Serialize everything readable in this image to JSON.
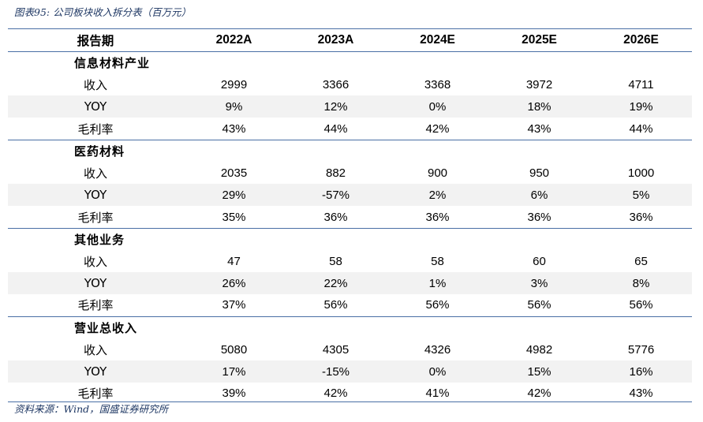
{
  "caption": "图表95:  公司板块收入拆分表（百万元）",
  "source": "资料来源：Wind，国盛证券研究所",
  "colors": {
    "rule": "#4a6fa5",
    "caption_text": "#1f3864",
    "row_shade": "#f2f2f2"
  },
  "header": {
    "label": "报告期",
    "years": [
      "2022A",
      "2023A",
      "2024E",
      "2025E",
      "2026E"
    ]
  },
  "sections": [
    {
      "name": "信息材料产业",
      "rows": [
        {
          "label": "收入",
          "values": [
            "2999",
            "3366",
            "3368",
            "3972",
            "4711"
          ]
        },
        {
          "label": "YOY",
          "values": [
            "9%",
            "12%",
            "0%",
            "18%",
            "19%"
          ]
        },
        {
          "label": "毛利率",
          "values": [
            "43%",
            "44%",
            "42%",
            "43%",
            "44%"
          ]
        }
      ]
    },
    {
      "name": "医药材料",
      "rows": [
        {
          "label": "收入",
          "values": [
            "2035",
            "882",
            "900",
            "950",
            "1000"
          ]
        },
        {
          "label": "YOY",
          "values": [
            "29%",
            "-57%",
            "2%",
            "6%",
            "5%"
          ]
        },
        {
          "label": "毛利率",
          "values": [
            "35%",
            "36%",
            "36%",
            "36%",
            "36%"
          ]
        }
      ]
    },
    {
      "name": "其他业务",
      "rows": [
        {
          "label": "收入",
          "values": [
            "47",
            "58",
            "58",
            "60",
            "65"
          ]
        },
        {
          "label": "YOY",
          "values": [
            "26%",
            "22%",
            "1%",
            "3%",
            "8%"
          ]
        },
        {
          "label": "毛利率",
          "values": [
            "37%",
            "56%",
            "56%",
            "56%",
            "56%"
          ]
        }
      ]
    },
    {
      "name": "营业总收入",
      "rows": [
        {
          "label": "收入",
          "values": [
            "5080",
            "4305",
            "4326",
            "4982",
            "5776"
          ]
        },
        {
          "label": "YOY",
          "values": [
            "17%",
            "-15%",
            "0%",
            "15%",
            "16%"
          ]
        },
        {
          "label": "毛利率",
          "values": [
            "39%",
            "42%",
            "41%",
            "42%",
            "43%"
          ]
        }
      ]
    }
  ]
}
